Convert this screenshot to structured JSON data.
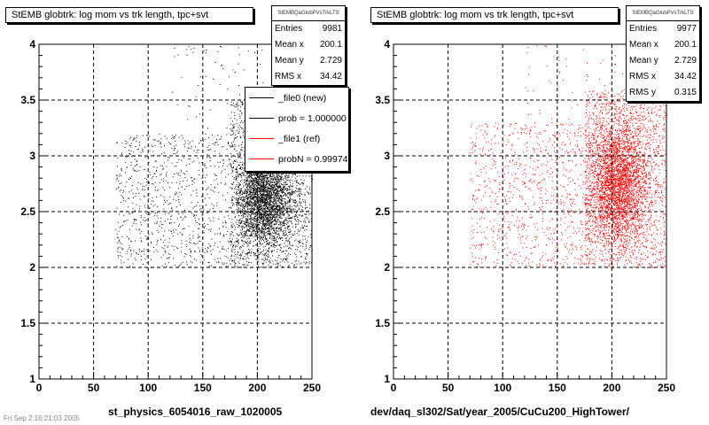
{
  "chart_data": [
    {
      "type": "scatter",
      "title": "StEMB globtrk: log mom vs trk length, tpc+svt",
      "xlabel": "st_physics_6054016_raw_1020005",
      "ylabel": "",
      "xlim": [
        0,
        250
      ],
      "ylim": [
        1,
        4
      ],
      "x_ticks": [
        "0",
        "50",
        "100",
        "150",
        "200",
        "250"
      ],
      "y_ticks": [
        "1",
        "1.5",
        "2",
        "2.5",
        "3",
        "3.5",
        "4"
      ],
      "grid": true,
      "marker_color": "#000000",
      "stats": {
        "header": "StEMBQaGlobPVsTrkLTS",
        "rows": [
          {
            "label": "Entries",
            "value": "9981"
          },
          {
            "label": "Mean x",
            "value": "200.1"
          },
          {
            "label": "Mean y",
            "value": "2.729"
          },
          {
            "label": "RMS x",
            "value": "34.42"
          }
        ]
      },
      "legend": {
        "placement": "top-right",
        "entries": [
          {
            "label": "_file0 (new)",
            "color": "#000000"
          },
          {
            "label": "prob = 1.000000",
            "color": "#000000"
          },
          {
            "label": "_file1 (ref)",
            "color": "#ff0000"
          },
          {
            "label": "probN = 0.999743",
            "color": "#ff0000"
          }
        ]
      },
      "clusters": [
        {
          "x_range": [
            180,
            250
          ],
          "y_range": [
            2.05,
            3.1
          ],
          "n": 3000,
          "shape": "gauss",
          "x_center": 205,
          "x_sigma": 14,
          "y_center": 2.6,
          "y_sigma": 0.22
        },
        {
          "x_range": [
            175,
            250
          ],
          "y_range": [
            2.0,
            3.5
          ],
          "n": 1400,
          "shape": "uniform"
        },
        {
          "x_range": [
            70,
            180
          ],
          "y_range": [
            2.0,
            3.2
          ],
          "n": 900,
          "shape": "uniform"
        },
        {
          "x_range": [
            120,
            250
          ],
          "y_range": [
            3.0,
            4.0
          ],
          "n": 120,
          "shape": "uniform"
        }
      ]
    },
    {
      "type": "scatter",
      "title": "StEMB globtrk: log mom vs trk length, tpc+svt",
      "xlabel": "dev/daq_sl302/Sat/year_2005/CuCu200_HighTower/",
      "ylabel": "",
      "xlim": [
        0,
        250
      ],
      "ylim": [
        1,
        4
      ],
      "x_ticks": [
        "0",
        "50",
        "100",
        "150",
        "200",
        "250"
      ],
      "y_ticks": [
        "1",
        "1.5",
        "2",
        "2.5",
        "3",
        "3.5",
        "4"
      ],
      "grid": true,
      "marker_color": "#ff0000",
      "stats": {
        "header": "StEMBQaGlobPVsTrkLTS",
        "rows": [
          {
            "label": "Entries",
            "value": "9977"
          },
          {
            "label": "Mean x",
            "value": "200.1"
          },
          {
            "label": "Mean y",
            "value": "2.729"
          },
          {
            "label": "RMS x",
            "value": "34.42"
          },
          {
            "label": "RMS y",
            "value": "0.315"
          }
        ]
      },
      "clusters": [
        {
          "x_range": [
            175,
            250
          ],
          "y_range": [
            2.05,
            3.6
          ],
          "n": 3200,
          "shape": "gauss",
          "x_center": 205,
          "x_sigma": 14,
          "y_center": 2.75,
          "y_sigma": 0.28
        },
        {
          "x_range": [
            175,
            250
          ],
          "y_range": [
            2.0,
            3.6
          ],
          "n": 1500,
          "shape": "uniform"
        },
        {
          "x_range": [
            70,
            180
          ],
          "y_range": [
            2.0,
            3.3
          ],
          "n": 900,
          "shape": "uniform"
        },
        {
          "x_range": [
            120,
            250
          ],
          "y_range": [
            3.0,
            4.0
          ],
          "n": 120,
          "shape": "uniform"
        }
      ]
    }
  ],
  "footer": "Fri Sep 2 16:21:03 2005"
}
